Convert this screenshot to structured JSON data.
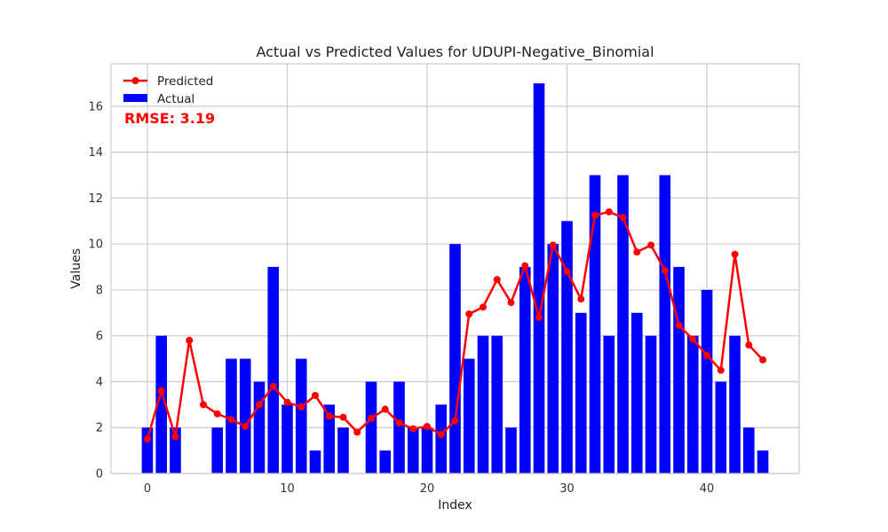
{
  "chart_data": {
    "type": "bar",
    "title": "Actual vs Predicted Values for UDUPI-Negative_Binomial",
    "xlabel": "Index",
    "ylabel": "Values",
    "xlim": [
      -2.6,
      46.6
    ],
    "ylim": [
      0,
      17.85
    ],
    "xticks": [
      0,
      10,
      20,
      30,
      40
    ],
    "yticks": [
      0,
      2,
      4,
      6,
      8,
      10,
      12,
      14,
      16
    ],
    "grid": true,
    "legend_position": "top-left",
    "annotation": "RMSE: 3.19",
    "x": [
      0,
      1,
      2,
      3,
      4,
      5,
      6,
      7,
      8,
      9,
      10,
      11,
      12,
      13,
      14,
      15,
      16,
      17,
      18,
      19,
      20,
      21,
      22,
      23,
      24,
      25,
      26,
      27,
      28,
      29,
      30,
      31,
      32,
      33,
      34,
      35,
      36,
      37,
      38,
      39,
      40,
      41,
      42,
      43,
      44
    ],
    "series": [
      {
        "name": "Actual",
        "kind": "bar",
        "color": "#0000ff",
        "values": [
          2,
          6,
          2,
          0,
          0,
          2,
          5,
          5,
          4,
          9,
          3,
          5,
          1,
          3,
          2,
          0,
          4,
          1,
          4,
          2,
          2,
          3,
          10,
          5,
          6,
          6,
          2,
          9,
          17,
          10,
          11,
          7,
          13,
          6,
          13,
          7,
          6,
          13,
          9,
          6,
          8,
          4,
          6,
          2,
          1
        ]
      },
      {
        "name": "Predicted",
        "kind": "line",
        "color": "#ff0000",
        "values": [
          1.5,
          3.6,
          1.6,
          5.8,
          3.0,
          2.6,
          2.35,
          2.05,
          3.0,
          3.8,
          3.1,
          2.9,
          3.4,
          2.5,
          2.45,
          1.8,
          2.4,
          2.8,
          2.2,
          1.95,
          2.05,
          1.7,
          2.3,
          6.95,
          7.25,
          8.45,
          7.45,
          9.05,
          6.8,
          9.95,
          8.8,
          7.6,
          11.25,
          11.4,
          11.15,
          9.65,
          9.95,
          8.85,
          6.45,
          5.85,
          5.15,
          4.5,
          9.55,
          5.6,
          4.95
        ]
      }
    ]
  },
  "colors": {
    "grid": "#cccccc",
    "frame": "#cccccc",
    "annotation": "#ff0000"
  }
}
